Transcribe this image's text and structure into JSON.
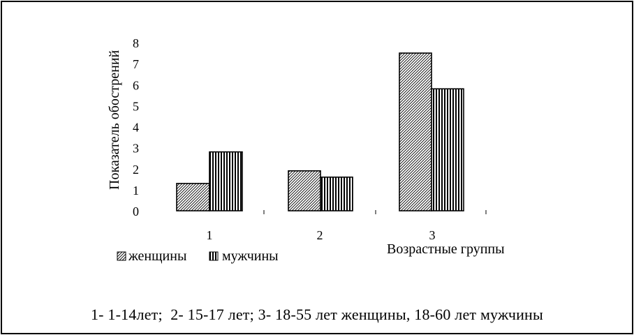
{
  "chart_data": {
    "type": "bar",
    "title": "",
    "xlabel": "Возрастные группы",
    "ylabel": "Показатель обострений",
    "categories": [
      "1",
      "2",
      "3"
    ],
    "series": [
      {
        "name": "женщины",
        "values": [
          1.3,
          1.9,
          7.5
        ],
        "pattern": "diagonal-hatch"
      },
      {
        "name": "мужчины",
        "values": [
          2.8,
          1.6,
          5.8
        ],
        "pattern": "vertical-stripes"
      }
    ],
    "ylim": [
      0,
      8
    ],
    "yticks": [
      "0",
      "1",
      "2",
      "3",
      "4",
      "5",
      "6",
      "7",
      "8"
    ],
    "grid": false,
    "legend_position": "bottom-left"
  },
  "caption": "1- 1-14лет;  2- 15-17 лет; 3- 18-55 лет женщины, 18-60 лет мужчины",
  "colors": {
    "bar_outline": "#000000",
    "background": "#ffffff"
  }
}
